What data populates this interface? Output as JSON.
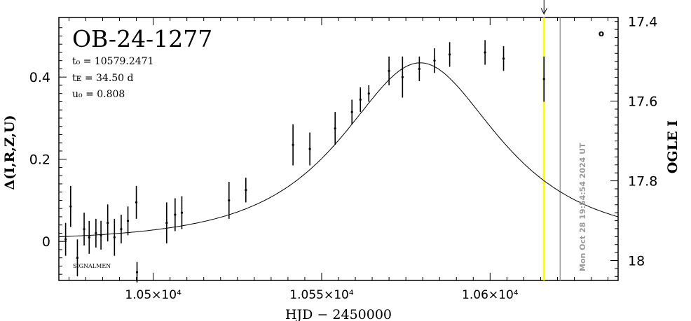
{
  "chart_data": {
    "type": "scatter",
    "title": "OB-24-1277",
    "params": [
      "t₀ = 10579.2471",
      "tᴇ = 34.50 d",
      "u₀ = 0.808"
    ],
    "xlabel": "HJD − 2450000",
    "ylabel": "Δ(I,R,Z,U)",
    "y2label": "OGLE I",
    "xlim": [
      10472,
      10638
    ],
    "ylim": [
      -0.095,
      0.545
    ],
    "y2lim": [
      18.05,
      17.39
    ],
    "x_ticks": [
      {
        "value": 10500,
        "label": "1.05×10⁴"
      },
      {
        "value": 10550,
        "label": "1.055×10⁴"
      },
      {
        "value": 10600,
        "label": "1.06×10⁴"
      }
    ],
    "y_ticks": [
      {
        "value": 0,
        "label": "0"
      },
      {
        "value": 0.2,
        "label": "0.2"
      },
      {
        "value": 0.4,
        "label": "0.4"
      }
    ],
    "y2_ticks": [
      {
        "value": 17.4,
        "label": "17.4"
      },
      {
        "value": 17.6,
        "label": "17.6"
      },
      {
        "value": 17.8,
        "label": "17.8"
      },
      {
        "value": 18.0,
        "label": "18"
      }
    ],
    "series": [
      {
        "color": "#000000",
        "points": [
          {
            "x": 10474.0,
            "y": 0.005,
            "err": 0.04
          },
          {
            "x": 10475.5,
            "y": 0.085,
            "err": 0.05
          },
          {
            "x": 10477.5,
            "y": -0.04,
            "err": 0.045
          },
          {
            "x": 10479.5,
            "y": 0.03,
            "err": 0.04
          },
          {
            "x": 10481.0,
            "y": 0.01,
            "err": 0.04
          },
          {
            "x": 10483.0,
            "y": 0.02,
            "err": 0.035
          },
          {
            "x": 10484.5,
            "y": 0.015,
            "err": 0.035
          },
          {
            "x": 10486.5,
            "y": 0.045,
            "err": 0.045
          },
          {
            "x": 10488.5,
            "y": 0.01,
            "err": 0.045
          },
          {
            "x": 10490.5,
            "y": 0.03,
            "err": 0.035
          },
          {
            "x": 10492.5,
            "y": 0.05,
            "err": 0.035
          },
          {
            "x": 10495.0,
            "y": 0.095,
            "err": 0.04
          },
          {
            "x": 10495.2,
            "y": -0.075,
            "err": 0.025
          },
          {
            "x": 10504.0,
            "y": 0.045,
            "err": 0.05
          },
          {
            "x": 10506.5,
            "y": 0.065,
            "err": 0.04
          },
          {
            "x": 10508.5,
            "y": 0.07,
            "err": 0.04
          },
          {
            "x": 10522.5,
            "y": 0.1,
            "err": 0.045
          },
          {
            "x": 10527.5,
            "y": 0.125,
            "err": 0.03
          },
          {
            "x": 10541.5,
            "y": 0.235,
            "err": 0.05
          },
          {
            "x": 10546.5,
            "y": 0.225,
            "err": 0.04
          },
          {
            "x": 10554.0,
            "y": 0.275,
            "err": 0.04
          },
          {
            "x": 10559.0,
            "y": 0.315,
            "err": 0.03
          },
          {
            "x": 10561.5,
            "y": 0.345,
            "err": 0.03
          },
          {
            "x": 10564.0,
            "y": 0.36,
            "err": 0.02
          },
          {
            "x": 10570.0,
            "y": 0.415,
            "err": 0.035
          },
          {
            "x": 10574.0,
            "y": 0.4,
            "err": 0.05
          },
          {
            "x": 10579.0,
            "y": 0.42,
            "err": 0.03
          },
          {
            "x": 10583.5,
            "y": 0.44,
            "err": 0.03
          },
          {
            "x": 10588.0,
            "y": 0.455,
            "err": 0.03
          },
          {
            "x": 10598.5,
            "y": 0.46,
            "err": 0.03
          },
          {
            "x": 10604.0,
            "y": 0.445,
            "err": 0.03
          },
          {
            "x": 10616.0,
            "y": 0.395,
            "err": 0.055
          }
        ]
      }
    ],
    "model": {
      "type": "microlensing-fit",
      "t0": 10579.2471,
      "tE": 34.5,
      "u0": 0.808,
      "amplitude": 0.8325,
      "color": "#000000"
    },
    "current_time_line": {
      "x": 10616.0,
      "color": "#ffff00",
      "arrow": true
    },
    "timestamp_line": {
      "x": 10620.8,
      "color": "#999999"
    },
    "timestamp_label": "Mon Oct 28 19:54:54 2024 UT",
    "corner_marker": "o",
    "watermark": "SIGNALMEN"
  }
}
